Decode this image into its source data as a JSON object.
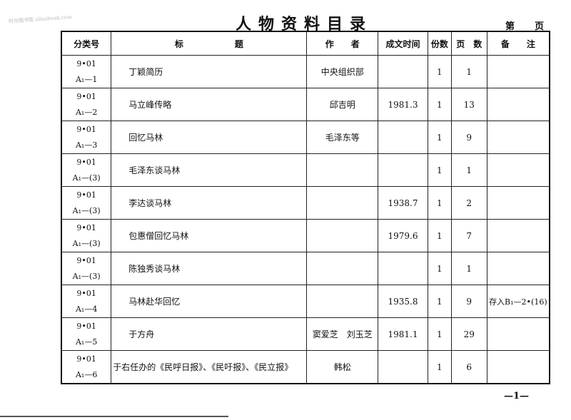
{
  "watermark": "时光图书馆 allanbook.com",
  "title": "人物资料目录",
  "page_label": {
    "di": "第",
    "ye": "页"
  },
  "headers": [
    "分类号",
    "标　　　　　　题",
    "作　　者",
    "成文时间",
    "份数",
    "页　数",
    "备　　注"
  ],
  "rows": [
    {
      "code1": "9•01",
      "code2": "A₁—1",
      "title": "丁颖简历",
      "author": "中央组织部",
      "date": "",
      "copies": "1",
      "pages": "1",
      "note": ""
    },
    {
      "code1": "9•01",
      "code2": "A₁—2",
      "title": "马立峰传略",
      "author": "邱吉明",
      "date": "1981.3",
      "copies": "1",
      "pages": "13",
      "note": ""
    },
    {
      "code1": "9•01",
      "code2": "A₁—3",
      "title": "回忆马林",
      "author": "毛泽东等",
      "date": "",
      "copies": "1",
      "pages": "9",
      "note": ""
    },
    {
      "code1": "9•01",
      "code2": "A₁—(3)",
      "title": "毛泽东谈马林",
      "author": "",
      "date": "",
      "copies": "1",
      "pages": "1",
      "note": ""
    },
    {
      "code1": "9•01",
      "code2": "A₁—(3)",
      "title": "李达谈马林",
      "author": "",
      "date": "1938.7",
      "copies": "1",
      "pages": "2",
      "note": ""
    },
    {
      "code1": "9•01",
      "code2": "A₁—(3)",
      "title": "包惠僧回忆马林",
      "author": "",
      "date": "1979.6",
      "copies": "1",
      "pages": "7",
      "note": ""
    },
    {
      "code1": "9•01",
      "code2": "A₁—(3)",
      "title": "陈独秀谈马林",
      "author": "",
      "date": "",
      "copies": "1",
      "pages": "1",
      "note": ""
    },
    {
      "code1": "9•01",
      "code2": "A₁—4",
      "title": "马林赴华回忆",
      "author": "",
      "date": "1935.8",
      "copies": "1",
      "pages": "9",
      "note": "存入B₁—2•(16)"
    },
    {
      "code1": "9•01",
      "code2": "A₁—5",
      "title": "于方舟",
      "author": "窦爱芝　刘玉芝",
      "date": "1981.1",
      "copies": "1",
      "pages": "29",
      "note": ""
    },
    {
      "code1": "9•01",
      "code2": "A₁—6",
      "title": "于右任办的《民呼日报》、《民吁报》、《民立报》",
      "author": "韩松",
      "date": "",
      "copies": "1",
      "pages": "6",
      "note": ""
    }
  ],
  "footer": "—1—"
}
